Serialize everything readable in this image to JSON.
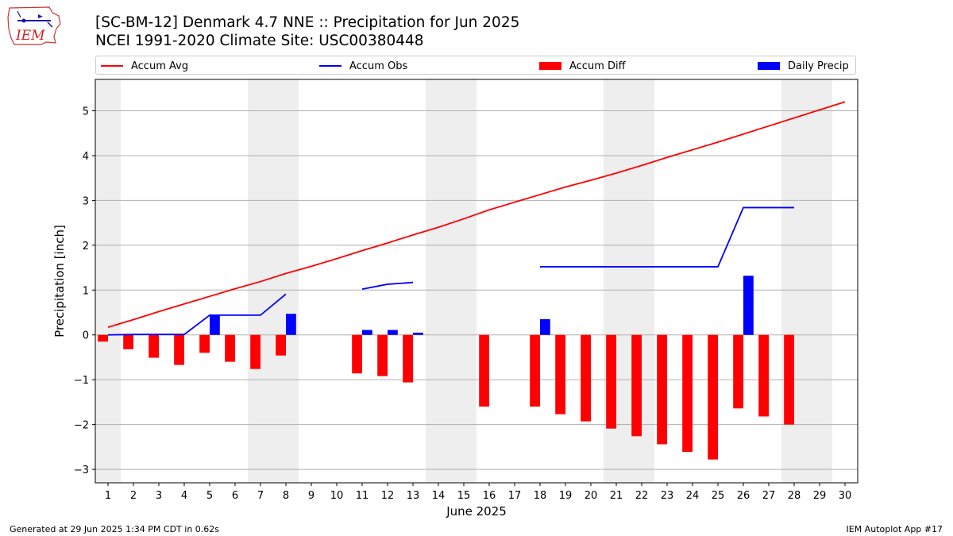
{
  "header": {
    "title_line1": "[SC-BM-12] Denmark 4.7 NNE :: Precipitation for Jun 2025",
    "title_line2": "NCEI 1991-2020 Climate Site: USC00380448"
  },
  "logo": {
    "text": "IEM",
    "icon": "iowa-state-outline-logo"
  },
  "footer": {
    "generated": "Generated at 29 Jun 2025 1:34 PM CDT in 0.62s",
    "app": "IEM Autoplot App #17"
  },
  "chart_data": {
    "type": "bar",
    "xlabel": "June 2025",
    "ylabel": "Precipitation [inch]",
    "xlim": [
      0.5,
      30.5
    ],
    "ylim": [
      -3.3,
      5.7
    ],
    "x_ticks": [
      1,
      2,
      3,
      4,
      5,
      6,
      7,
      8,
      9,
      10,
      11,
      12,
      13,
      14,
      15,
      16,
      17,
      18,
      19,
      20,
      21,
      22,
      23,
      24,
      25,
      26,
      27,
      28,
      29,
      30
    ],
    "y_ticks": [
      -3,
      -2,
      -1,
      0,
      1,
      2,
      3,
      4,
      5
    ],
    "y_tick_labels": [
      "−3",
      "−2",
      "−1",
      "0",
      "1",
      "2",
      "3",
      "4",
      "5"
    ],
    "grid": "horizontal",
    "legend_position": "top",
    "weekend_shading": [
      [
        0.5,
        1.5
      ],
      [
        6.5,
        8.5
      ],
      [
        13.5,
        15.5
      ],
      [
        20.5,
        22.5
      ],
      [
        27.5,
        29.5
      ]
    ],
    "colors": {
      "accum_avg": "#ff0000",
      "accum_obs": "#0000ff",
      "accum_diff": "#ff0000",
      "daily_precip": "#0000ff",
      "weekend": "#eeeeee"
    },
    "series": [
      {
        "name": "Accum Avg",
        "kind": "line",
        "x": [
          1,
          2,
          3,
          4,
          5,
          6,
          7,
          8,
          9,
          10,
          11,
          12,
          13,
          14,
          15,
          16,
          17,
          18,
          19,
          20,
          21,
          22,
          23,
          24,
          25,
          26,
          27,
          28,
          29,
          30
        ],
        "values": [
          0.17,
          0.34,
          0.52,
          0.69,
          0.86,
          1.03,
          1.19,
          1.37,
          1.53,
          1.7,
          1.88,
          2.05,
          2.23,
          2.4,
          2.59,
          2.79,
          2.96,
          3.13,
          3.3,
          3.45,
          3.61,
          3.78,
          3.96,
          4.13,
          4.3,
          4.48,
          4.66,
          4.84,
          5.02,
          5.2
        ]
      },
      {
        "name": "Accum Obs",
        "kind": "line",
        "segments": [
          {
            "x": [
              1,
              2,
              3,
              4,
              5,
              6,
              7,
              8
            ],
            "values": [
              0.0,
              0.01,
              0.01,
              0.01,
              0.44,
              0.44,
              0.44,
              0.91
            ]
          },
          {
            "x": [
              11,
              12,
              13
            ],
            "values": [
              1.02,
              1.13,
              1.17
            ]
          },
          {
            "x": [
              18,
              19,
              20,
              21,
              22,
              23,
              24,
              25,
              26,
              27,
              28
            ],
            "values": [
              1.52,
              1.52,
              1.52,
              1.52,
              1.52,
              1.52,
              1.52,
              1.52,
              2.84,
              2.84,
              2.84
            ]
          }
        ]
      },
      {
        "name": "Accum Diff",
        "kind": "bar",
        "x": [
          1,
          2,
          3,
          4,
          5,
          6,
          7,
          8,
          11,
          12,
          13,
          16,
          18,
          19,
          20,
          21,
          22,
          23,
          24,
          25,
          26,
          27,
          28
        ],
        "values": [
          -0.15,
          -0.32,
          -0.51,
          -0.67,
          -0.4,
          -0.6,
          -0.76,
          -0.46,
          -0.86,
          -0.92,
          -1.06,
          -1.6,
          -1.6,
          -1.77,
          -1.93,
          -2.09,
          -2.26,
          -2.44,
          -2.61,
          -2.78,
          -1.64,
          -1.82,
          -2.0
        ]
      },
      {
        "name": "Daily Precip",
        "kind": "bar",
        "x": [
          5,
          8,
          11,
          12,
          13,
          18,
          26
        ],
        "values": [
          0.44,
          0.47,
          0.11,
          0.11,
          0.05,
          0.35,
          1.32
        ]
      }
    ]
  }
}
